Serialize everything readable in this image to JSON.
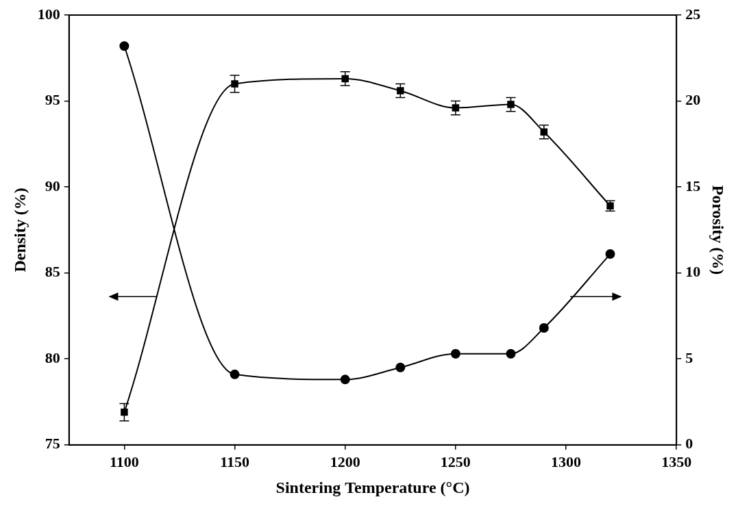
{
  "chart_data": {
    "type": "line",
    "x_label": "Sintering Temperature (°C)",
    "y_label": "Density (%)",
    "y2_label": "Porosity (%)",
    "x": [
      1100,
      1150,
      1200,
      1225,
      1250,
      1275,
      1290,
      1320
    ],
    "xlim": [
      1075,
      1350
    ],
    "xticks": [
      1100,
      1150,
      1200,
      1250,
      1300,
      1350
    ],
    "ylim": [
      75,
      100
    ],
    "yticks": [
      75,
      80,
      85,
      90,
      95,
      100
    ],
    "y2lim": [
      0,
      25
    ],
    "y2ticks": [
      0,
      5,
      10,
      15,
      20,
      25
    ],
    "grid": false,
    "series": [
      {
        "color": "#000000",
        "marker": "square",
        "line_style": "solid",
        "values": [
          76.9,
          96.0,
          96.3,
          95.6,
          94.6,
          94.8,
          93.2,
          88.9
        ],
        "errors": [
          0.5,
          0.5,
          0.4,
          0.4,
          0.4,
          0.4,
          0.4,
          0.3
        ]
      },
      {
        "color": "#000000",
        "marker": "circle",
        "line_style": "solid",
        "axis": "y2",
        "values": [
          23.2,
          4.1,
          3.8,
          4.5,
          5.3,
          5.3,
          6.8,
          11.1
        ]
      }
    ]
  }
}
